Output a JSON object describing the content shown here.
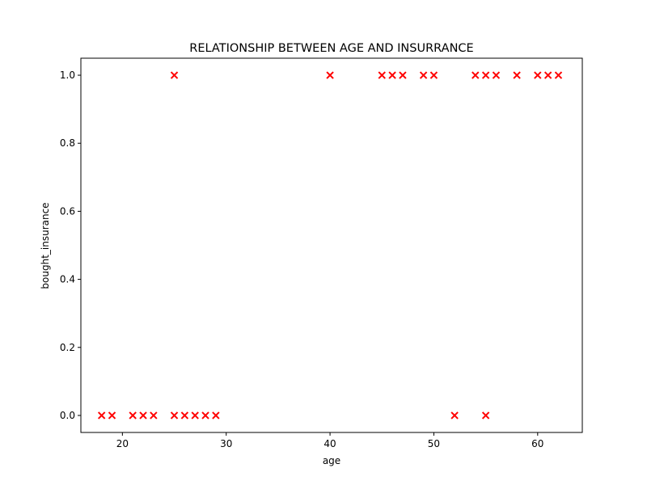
{
  "chart_data": {
    "type": "scatter",
    "title": "RELATIONSHIP BETWEEN AGE AND INSURRANCE",
    "xlabel": "age",
    "ylabel": "bought_insurance",
    "xlim": [
      16,
      64.3
    ],
    "ylim": [
      -0.05,
      1.05
    ],
    "xticks": [
      20,
      30,
      40,
      50,
      60
    ],
    "yticks": [
      0.0,
      0.2,
      0.4,
      0.6,
      0.8,
      1.0
    ],
    "xtick_labels": [
      "20",
      "30",
      "40",
      "50",
      "60"
    ],
    "ytick_labels": [
      "0.0",
      "0.2",
      "0.4",
      "0.6",
      "0.8",
      "1.0"
    ],
    "grid": false,
    "marker": "x",
    "color": "#ff0000",
    "points": [
      {
        "x": 18,
        "y": 0
      },
      {
        "x": 19,
        "y": 0
      },
      {
        "x": 21,
        "y": 0
      },
      {
        "x": 22,
        "y": 0
      },
      {
        "x": 23,
        "y": 0
      },
      {
        "x": 25,
        "y": 0
      },
      {
        "x": 25,
        "y": 1
      },
      {
        "x": 26,
        "y": 0
      },
      {
        "x": 27,
        "y": 0
      },
      {
        "x": 28,
        "y": 0
      },
      {
        "x": 29,
        "y": 0
      },
      {
        "x": 40,
        "y": 1
      },
      {
        "x": 45,
        "y": 1
      },
      {
        "x": 46,
        "y": 1
      },
      {
        "x": 47,
        "y": 1
      },
      {
        "x": 49,
        "y": 1
      },
      {
        "x": 50,
        "y": 1
      },
      {
        "x": 52,
        "y": 0
      },
      {
        "x": 54,
        "y": 1
      },
      {
        "x": 55,
        "y": 1
      },
      {
        "x": 55,
        "y": 0
      },
      {
        "x": 56,
        "y": 1
      },
      {
        "x": 58,
        "y": 1
      },
      {
        "x": 60,
        "y": 1
      },
      {
        "x": 61,
        "y": 1
      },
      {
        "x": 62,
        "y": 1
      }
    ]
  }
}
